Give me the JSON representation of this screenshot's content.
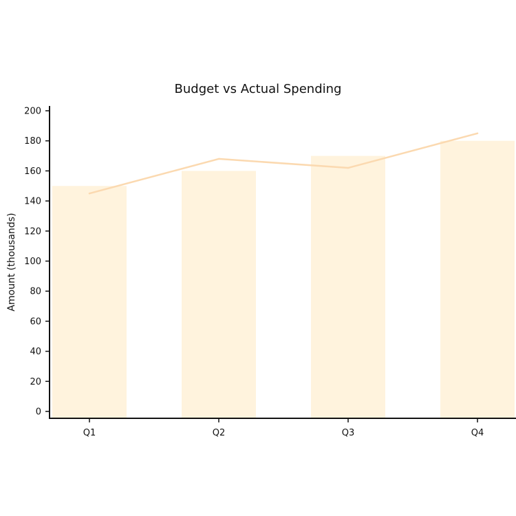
{
  "chart_data": {
    "type": "bar",
    "title": "Budget vs Actual Spending",
    "xlabel": "",
    "ylabel": "Amount (thousands)",
    "categories": [
      "Q1",
      "Q2",
      "Q3",
      "Q4"
    ],
    "ylim": [
      0,
      200
    ],
    "yticks": [
      0,
      20,
      40,
      60,
      80,
      100,
      120,
      140,
      160,
      180,
      200
    ],
    "grid": false,
    "legend": "none",
    "series": [
      {
        "kind": "bar",
        "color": "#fff3dd",
        "values": [
          150,
          160,
          170,
          180
        ]
      },
      {
        "kind": "line",
        "color": "#fbd9b0",
        "values": [
          145,
          168,
          162,
          185
        ]
      }
    ]
  }
}
